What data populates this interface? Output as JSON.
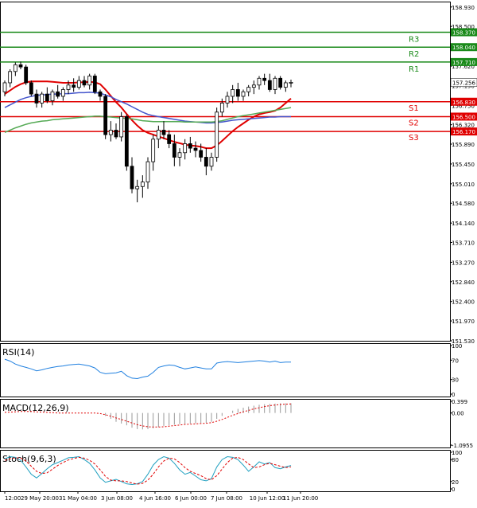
{
  "chart_data": {
    "type": "candlestick",
    "instrument_price_axis": [
      "158.930",
      "158.500",
      "158.370",
      "158.040",
      "157.710",
      "157.620",
      "157.256",
      "156.830",
      "156.750",
      "156.500",
      "156.320",
      "156.170",
      "155.890",
      "155.450",
      "155.010",
      "154.580",
      "154.140",
      "153.710",
      "153.270",
      "152.840",
      "152.400",
      "151.970",
      "151.530"
    ],
    "price_ticks": [
      158.93,
      158.5,
      157.62,
      157.19,
      156.75,
      156.32,
      155.89,
      155.45,
      155.01,
      154.58,
      154.14,
      153.71,
      153.27,
      152.84,
      152.4,
      151.97,
      151.53
    ],
    "price_tick_labels": [
      "158.930",
      "158.500",
      "157.620",
      "157.190",
      "156.750",
      "156.320",
      "155.890",
      "155.450",
      "155.010",
      "154.580",
      "154.140",
      "153.710",
      "153.270",
      "152.840",
      "152.400",
      "151.970",
      "151.530"
    ],
    "ylim": [
      151.53,
      159.05
    ],
    "levels": [
      {
        "name": "R3",
        "value": 158.37,
        "label": "158.370",
        "color": "#1a8a1a"
      },
      {
        "name": "R2",
        "value": 158.04,
        "label": "158.040",
        "color": "#1a8a1a"
      },
      {
        "name": "R1",
        "value": 157.71,
        "label": "157.710",
        "color": "#1a8a1a"
      },
      {
        "name": "S1",
        "value": 156.83,
        "label": "156.830",
        "color": "#e00000"
      },
      {
        "name": "S2",
        "value": 156.5,
        "label": "156.500",
        "color": "#e00000"
      },
      {
        "name": "S3",
        "value": 156.17,
        "label": "156.170",
        "color": "#e00000"
      }
    ],
    "current_price": {
      "value": 157.256,
      "label": "157.256"
    },
    "x_labels": [
      "12:00",
      "29 May 20:00",
      "31 May 04:00",
      "3 Jun 08:00",
      "4 Jun 16:00",
      "6 Jun 00:00",
      "7 Jun 08:00",
      "10 Jun 12:00",
      "11 Jun 20:00"
    ],
    "candles": [
      [
        157.05,
        157.3,
        156.95,
        157.25
      ],
      [
        157.25,
        157.55,
        157.15,
        157.5
      ],
      [
        157.5,
        157.7,
        157.4,
        157.65
      ],
      [
        157.65,
        157.72,
        157.55,
        157.6
      ],
      [
        157.6,
        157.65,
        157.2,
        157.25
      ],
      [
        157.25,
        157.3,
        156.95,
        157.0
      ],
      [
        157.0,
        157.1,
        156.7,
        156.8
      ],
      [
        156.8,
        157.05,
        156.7,
        157.0
      ],
      [
        157.0,
        157.15,
        156.8,
        156.85
      ],
      [
        156.85,
        157.1,
        156.75,
        157.05
      ],
      [
        157.05,
        157.2,
        156.9,
        156.95
      ],
      [
        156.95,
        157.15,
        156.85,
        157.1
      ],
      [
        157.1,
        157.3,
        157.0,
        157.2
      ],
      [
        157.2,
        157.35,
        157.05,
        157.15
      ],
      [
        157.15,
        157.4,
        157.1,
        157.3
      ],
      [
        157.3,
        157.4,
        157.15,
        157.2
      ],
      [
        157.2,
        157.45,
        157.1,
        157.4
      ],
      [
        157.4,
        157.45,
        157.0,
        157.05
      ],
      [
        157.05,
        157.1,
        156.85,
        156.95
      ],
      [
        156.95,
        157.0,
        156.0,
        156.1
      ],
      [
        156.1,
        156.4,
        155.95,
        156.2
      ],
      [
        156.2,
        156.35,
        156.0,
        156.05
      ],
      [
        156.05,
        156.6,
        155.95,
        156.5
      ],
      [
        156.5,
        156.55,
        155.3,
        155.4
      ],
      [
        155.4,
        155.6,
        154.8,
        154.9
      ],
      [
        154.9,
        155.1,
        154.6,
        154.95
      ],
      [
        154.95,
        155.2,
        154.7,
        155.05
      ],
      [
        155.05,
        155.6,
        154.9,
        155.5
      ],
      [
        155.5,
        156.1,
        155.3,
        156.0
      ],
      [
        156.0,
        156.3,
        155.8,
        156.2
      ],
      [
        156.2,
        156.4,
        156.0,
        156.1
      ],
      [
        156.1,
        156.2,
        155.8,
        155.9
      ],
      [
        155.9,
        156.1,
        155.4,
        155.6
      ],
      [
        155.6,
        155.8,
        155.4,
        155.7
      ],
      [
        155.7,
        156.0,
        155.55,
        155.9
      ],
      [
        155.9,
        156.05,
        155.7,
        155.8
      ],
      [
        155.8,
        155.95,
        155.6,
        155.75
      ],
      [
        155.75,
        155.9,
        155.5,
        155.6
      ],
      [
        155.6,
        155.8,
        155.2,
        155.4
      ],
      [
        155.4,
        155.7,
        155.3,
        155.6
      ],
      [
        155.6,
        156.7,
        155.5,
        156.6
      ],
      [
        156.6,
        156.9,
        156.5,
        156.8
      ],
      [
        156.8,
        157.05,
        156.7,
        156.95
      ],
      [
        156.95,
        157.2,
        156.8,
        157.1
      ],
      [
        157.1,
        157.25,
        156.85,
        156.95
      ],
      [
        156.95,
        157.1,
        156.85,
        157.05
      ],
      [
        157.05,
        157.2,
        156.95,
        157.15
      ],
      [
        157.15,
        157.3,
        157.0,
        157.2
      ],
      [
        157.2,
        157.4,
        157.1,
        157.35
      ],
      [
        157.35,
        157.45,
        157.2,
        157.3
      ],
      [
        157.3,
        157.45,
        157.05,
        157.1
      ],
      [
        157.1,
        157.4,
        157.0,
        157.35
      ],
      [
        157.35,
        157.4,
        157.1,
        157.15
      ],
      [
        157.15,
        157.3,
        157.05,
        157.25
      ],
      [
        157.25,
        157.32,
        157.15,
        157.26
      ]
    ],
    "moving_averages": [
      {
        "color": "#e00000",
        "values": [
          157.0,
          157.08,
          157.16,
          157.22,
          157.26,
          157.28,
          157.28,
          157.28,
          157.28,
          157.27,
          157.26,
          157.25,
          157.25,
          157.25,
          157.26,
          157.26,
          157.27,
          157.26,
          157.22,
          157.1,
          156.96,
          156.82,
          156.7,
          156.56,
          156.42,
          156.3,
          156.2,
          156.14,
          156.1,
          156.06,
          156.02,
          155.98,
          155.94,
          155.91,
          155.88,
          155.86,
          155.85,
          155.83,
          155.8,
          155.8,
          155.86,
          155.96,
          156.07,
          156.18,
          156.27,
          156.35,
          156.43,
          156.5,
          156.55,
          156.58,
          156.6,
          156.63,
          156.7,
          156.8,
          156.9
        ]
      },
      {
        "color": "#4455cc",
        "values": [
          156.7,
          156.76,
          156.82,
          156.88,
          156.92,
          156.95,
          156.97,
          156.98,
          156.99,
          157.0,
          157.0,
          157.01,
          157.01,
          157.02,
          157.03,
          157.03,
          157.04,
          157.03,
          157.02,
          156.98,
          156.94,
          156.88,
          156.83,
          156.78,
          156.72,
          156.66,
          156.6,
          156.55,
          156.52,
          156.5,
          156.48,
          156.46,
          156.44,
          156.42,
          156.4,
          156.39,
          156.38,
          156.37,
          156.36,
          156.36,
          156.37,
          156.38,
          156.4,
          156.42,
          156.43,
          156.44,
          156.45,
          156.46,
          156.47,
          156.48,
          156.49,
          156.49,
          156.5,
          156.5,
          156.5
        ]
      },
      {
        "color": "#55aa55",
        "values": [
          156.15,
          156.2,
          156.25,
          156.29,
          156.33,
          156.36,
          156.38,
          156.4,
          156.41,
          156.43,
          156.44,
          156.45,
          156.46,
          156.47,
          156.48,
          156.49,
          156.5,
          156.51,
          156.51,
          156.5,
          156.49,
          156.48,
          156.47,
          156.46,
          156.45,
          156.43,
          156.41,
          156.4,
          156.39,
          156.39,
          156.39,
          156.39,
          156.39,
          156.39,
          156.38,
          156.38,
          156.38,
          156.38,
          156.38,
          156.38,
          156.39,
          156.41,
          156.44,
          156.47,
          156.5,
          156.52,
          156.54,
          156.56,
          156.58,
          156.6,
          156.62,
          156.64,
          156.66,
          156.68,
          156.7
        ]
      }
    ],
    "rsi": {
      "label": "RSI(14)",
      "ticks": [
        "100",
        "70",
        "30",
        "0"
      ],
      "tick_values": [
        100,
        70,
        30,
        0
      ],
      "values": [
        72,
        68,
        62,
        58,
        55,
        52,
        48,
        50,
        53,
        55,
        57,
        58,
        60,
        61,
        62,
        60,
        58,
        54,
        45,
        42,
        43,
        44,
        47,
        38,
        33,
        32,
        35,
        37,
        45,
        55,
        58,
        60,
        59,
        55,
        52,
        54,
        56,
        54,
        52,
        52,
        64,
        66,
        67,
        66,
        65,
        66,
        67,
        68,
        69,
        68,
        66,
        68,
        65,
        66,
        66
      ],
      "color": "#2080e0"
    },
    "macd": {
      "label": "MACD(12,26,9)",
      "ticks": [
        "0.399",
        "0.00",
        "-1.0955"
      ],
      "tick_values": [
        0.399,
        0.0,
        -1.0955
      ],
      "histogram": [
        0,
        0,
        0,
        0,
        0,
        0,
        0,
        0,
        0,
        0,
        0,
        0,
        0,
        0,
        0,
        0,
        0,
        0,
        0,
        -0.1,
        -0.2,
        -0.3,
        -0.36,
        -0.42,
        -0.5,
        -0.55,
        -0.56,
        -0.55,
        -0.52,
        -0.48,
        -0.44,
        -0.42,
        -0.4,
        -0.38,
        -0.37,
        -0.36,
        -0.35,
        -0.34,
        -0.34,
        -0.3,
        -0.2,
        -0.1,
        0.0,
        0.08,
        0.14,
        0.18,
        0.22,
        0.25,
        0.28,
        0.3,
        0.31,
        0.32,
        0.33,
        0.33,
        0.33
      ],
      "signal": [
        0.02,
        0.03,
        0.04,
        0.05,
        0.05,
        0.05,
        0.04,
        0.03,
        0.02,
        0.01,
        0.0,
        0.0,
        0.0,
        0.0,
        0.0,
        0.0,
        0.0,
        0.0,
        -0.02,
        -0.06,
        -0.11,
        -0.17,
        -0.22,
        -0.28,
        -0.34,
        -0.4,
        -0.44,
        -0.47,
        -0.48,
        -0.48,
        -0.47,
        -0.45,
        -0.43,
        -0.41,
        -0.39,
        -0.38,
        -0.37,
        -0.36,
        -0.35,
        -0.33,
        -0.28,
        -0.22,
        -0.15,
        -0.08,
        -0.02,
        0.04,
        0.09,
        0.14,
        0.18,
        0.22,
        0.25,
        0.27,
        0.29,
        0.3,
        0.31
      ],
      "hist_color": "#999999",
      "signal_color": "#e00000"
    },
    "stoch": {
      "label": "Stoch(9,6,3)",
      "ticks": [
        "100",
        "80",
        "20",
        "0"
      ],
      "tick_values": [
        100,
        80,
        20,
        0
      ],
      "main": [
        82,
        88,
        86,
        78,
        60,
        40,
        30,
        42,
        55,
        66,
        72,
        78,
        85,
        86,
        88,
        80,
        70,
        52,
        30,
        18,
        22,
        26,
        20,
        14,
        12,
        14,
        20,
        40,
        65,
        80,
        88,
        84,
        70,
        52,
        40,
        45,
        35,
        25,
        22,
        28,
        60,
        80,
        88,
        86,
        80,
        65,
        48,
        60,
        74,
        68,
        72,
        58,
        55,
        60,
        64
      ],
      "signal": [
        78,
        82,
        85,
        84,
        76,
        62,
        48,
        42,
        44,
        54,
        64,
        72,
        79,
        83,
        86,
        84,
        78,
        68,
        52,
        34,
        24,
        22,
        22,
        20,
        16,
        13,
        15,
        24,
        40,
        60,
        76,
        84,
        82,
        72,
        58,
        48,
        42,
        36,
        28,
        25,
        36,
        54,
        72,
        84,
        86,
        80,
        68,
        58,
        60,
        66,
        70,
        66,
        62,
        58,
        60
      ],
      "main_color": "#20a0c0",
      "signal_color": "#e00000"
    }
  },
  "labels": {
    "r3": "R3",
    "r2": "R2",
    "r1": "R1",
    "s1": "S1",
    "s2": "S2",
    "s3": "S3"
  }
}
